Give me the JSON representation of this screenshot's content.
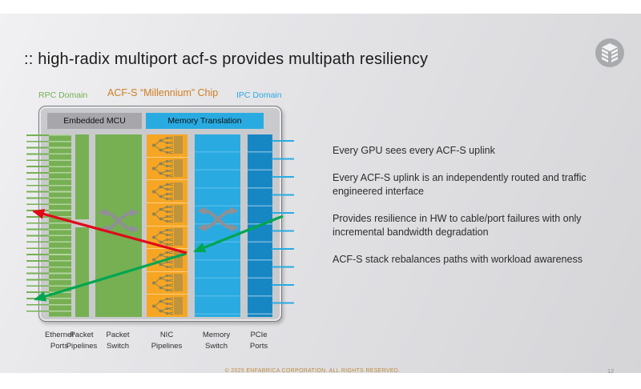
{
  "slide": {
    "title": ":: high-radix multiport acf-s provides multipath resiliency",
    "footer": "© 2025 ENFABRICA CORPORATION. ALL RIGHTS RESERVED.",
    "page_number": "12"
  },
  "diagram": {
    "domains": [
      {
        "label": "RPC Domain"
      },
      {
        "label": "ACF-S “Millennium” Chip"
      },
      {
        "label": "IPC Domain"
      }
    ],
    "top_bars": [
      {
        "label": "Embedded MCU"
      },
      {
        "label": "Memory Translation"
      }
    ],
    "column_labels": [
      [
        "Ethernet",
        "Ports"
      ],
      [
        "Packet",
        "Pipelines"
      ],
      [
        "Packet",
        "Switch"
      ],
      [
        "NIC",
        "Pipelines"
      ],
      [
        "Memory",
        "Switch"
      ],
      [
        "PCIe",
        "Ports"
      ]
    ],
    "nic_pipeline_rows": 8
  },
  "bullets": [
    "Every GPU sees every ACF-S uplink",
    "Every ACF-S uplink is an independently routed and traffic engineered interface",
    "Provides resilience in HW to cable/port failures with only incremental bandwidth degradation",
    "ACF-S stack rebalances paths with workload awareness"
  ],
  "colors": {
    "rpc_green": "#76b053",
    "chip_label_orange": "#cf7e20",
    "ipc_blue": "#29a9e1",
    "nic_orange": "#f6a623",
    "memory_blue": "#29abe2",
    "pcie_blue": "#1787c4",
    "mcu_gray": "#a7a7ab",
    "arrow_red": "#e0091a",
    "arrow_green": "#00a651",
    "footer_orange": "#bf8a3e"
  }
}
